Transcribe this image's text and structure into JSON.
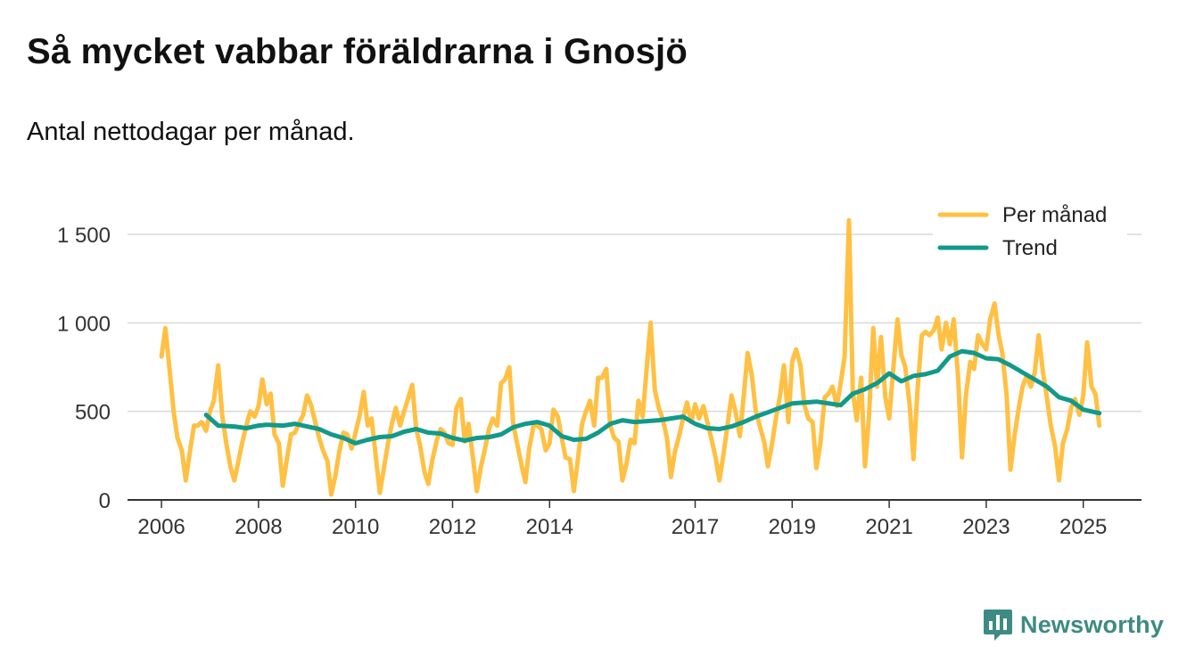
{
  "title": "Så mycket vabbar föräldrarna i Gnosjö",
  "subtitle": "Antal nettodagar per månad.",
  "brand": {
    "name": "Newsworthy",
    "icon": "newsworthy-logo-icon",
    "color": "#3d8b83"
  },
  "colors": {
    "per_month": "#ffc043",
    "trend": "#12998a",
    "grid": "#d9d9d9",
    "axis": "#333333"
  },
  "chart_data": {
    "type": "line",
    "title": "Så mycket vabbar föräldrarna i Gnosjö",
    "subtitle": "Antal nettodagar per månad.",
    "xlabel": "",
    "ylabel": "",
    "xlim": [
      2005.3,
      2026.2
    ],
    "ylim": [
      0,
      1500
    ],
    "y_ticks": [
      0,
      500,
      1000,
      1500
    ],
    "y_tick_labels": [
      "0",
      "500",
      "1 000",
      "1 500"
    ],
    "x_ticks": [
      2006,
      2008,
      2010,
      2012,
      2014,
      2017,
      2019,
      2021,
      2023,
      2025
    ],
    "x_tick_labels": [
      "2006",
      "2008",
      "2010",
      "2012",
      "2014",
      "2017",
      "2019",
      "2021",
      "2023",
      "2025"
    ],
    "grid": true,
    "legend_position": "top-right",
    "series": [
      {
        "name": "Per månad",
        "x": [
          2006.0,
          2006.08,
          2006.17,
          2006.25,
          2006.33,
          2006.42,
          2006.5,
          2006.58,
          2006.67,
          2006.75,
          2006.83,
          2006.92,
          2007.0,
          2007.08,
          2007.17,
          2007.25,
          2007.33,
          2007.42,
          2007.5,
          2007.58,
          2007.67,
          2007.75,
          2007.83,
          2007.92,
          2008.0,
          2008.08,
          2008.17,
          2008.25,
          2008.33,
          2008.42,
          2008.5,
          2008.58,
          2008.67,
          2008.75,
          2008.83,
          2008.92,
          2009.0,
          2009.08,
          2009.17,
          2009.25,
          2009.33,
          2009.42,
          2009.5,
          2009.58,
          2009.67,
          2009.75,
          2009.83,
          2009.92,
          2010.0,
          2010.08,
          2010.17,
          2010.25,
          2010.33,
          2010.42,
          2010.5,
          2010.58,
          2010.67,
          2010.75,
          2010.83,
          2010.92,
          2011.0,
          2011.08,
          2011.17,
          2011.25,
          2011.33,
          2011.42,
          2011.5,
          2011.58,
          2011.67,
          2011.75,
          2011.83,
          2011.92,
          2012.0,
          2012.08,
          2012.17,
          2012.25,
          2012.33,
          2012.42,
          2012.5,
          2012.58,
          2012.67,
          2012.75,
          2012.83,
          2012.92,
          2013.0,
          2013.08,
          2013.17,
          2013.25,
          2013.33,
          2013.42,
          2013.5,
          2013.58,
          2013.67,
          2013.75,
          2013.83,
          2013.92,
          2014.0,
          2014.08,
          2014.17,
          2014.25,
          2014.33,
          2014.42,
          2014.5,
          2014.58,
          2014.67,
          2014.75,
          2014.83,
          2014.92,
          2015.0,
          2015.08,
          2015.17,
          2015.25,
          2015.33,
          2015.42,
          2015.5,
          2015.58,
          2015.67,
          2015.75,
          2015.83,
          2015.92,
          2016.0,
          2016.08,
          2016.17,
          2016.25,
          2016.33,
          2016.42,
          2016.5,
          2016.58,
          2016.67,
          2016.75,
          2016.83,
          2016.92,
          2017.0,
          2017.08,
          2017.17,
          2017.25,
          2017.33,
          2017.42,
          2017.5,
          2017.58,
          2017.67,
          2017.75,
          2017.83,
          2017.92,
          2018.0,
          2018.08,
          2018.17,
          2018.25,
          2018.33,
          2018.42,
          2018.5,
          2018.58,
          2018.67,
          2018.75,
          2018.83,
          2018.92,
          2019.0,
          2019.08,
          2019.17,
          2019.25,
          2019.33,
          2019.42,
          2019.5,
          2019.58,
          2019.67,
          2019.75,
          2019.83,
          2019.92,
          2020.0,
          2020.08,
          2020.17,
          2020.25,
          2020.33,
          2020.42,
          2020.5,
          2020.58,
          2020.67,
          2020.75,
          2020.83,
          2020.92,
          2021.0,
          2021.08,
          2021.17,
          2021.25,
          2021.33,
          2021.42,
          2021.5,
          2021.58,
          2021.67,
          2021.75,
          2021.83,
          2021.92,
          2022.0,
          2022.08,
          2022.17,
          2022.25,
          2022.33,
          2022.42,
          2022.5,
          2022.58,
          2022.67,
          2022.75,
          2022.83,
          2022.92,
          2023.0,
          2023.08,
          2023.17,
          2023.25,
          2023.33,
          2023.42,
          2023.5,
          2023.58,
          2023.67,
          2023.75,
          2023.83,
          2023.92,
          2024.0,
          2024.08,
          2024.17,
          2024.25,
          2024.33,
          2024.42,
          2024.5,
          2024.58,
          2024.67,
          2024.75,
          2024.83,
          2024.92,
          2025.0,
          2025.08,
          2025.17,
          2025.25,
          2025.33
        ],
        "values": [
          810,
          970,
          730,
          500,
          350,
          280,
          110,
          260,
          420,
          420,
          440,
          390,
          500,
          560,
          760,
          480,
          330,
          190,
          110,
          210,
          330,
          420,
          500,
          470,
          530,
          680,
          540,
          600,
          370,
          320,
          80,
          220,
          370,
          380,
          430,
          480,
          590,
          540,
          440,
          350,
          280,
          220,
          30,
          130,
          280,
          380,
          370,
          290,
          380,
          470,
          610,
          420,
          460,
          240,
          40,
          170,
          320,
          430,
          520,
          420,
          500,
          570,
          650,
          400,
          310,
          160,
          90,
          220,
          330,
          400,
          380,
          320,
          310,
          520,
          570,
          330,
          430,
          240,
          50,
          180,
          290,
          400,
          460,
          420,
          660,
          680,
          750,
          430,
          320,
          200,
          100,
          290,
          420,
          420,
          400,
          280,
          320,
          510,
          470,
          350,
          240,
          230,
          50,
          220,
          430,
          500,
          560,
          420,
          690,
          690,
          740,
          420,
          350,
          330,
          110,
          200,
          340,
          320,
          560,
          470,
          740,
          1000,
          620,
          520,
          460,
          350,
          130,
          270,
          360,
          460,
          550,
          440,
          540,
          460,
          530,
          440,
          350,
          240,
          110,
          250,
          430,
          590,
          500,
          360,
          580,
          830,
          700,
          500,
          420,
          330,
          190,
          310,
          470,
          590,
          760,
          440,
          780,
          850,
          760,
          540,
          460,
          440,
          180,
          320,
          580,
          600,
          640,
          530,
          660,
          810,
          1580,
          610,
          450,
          690,
          190,
          460,
          970,
          640,
          920,
          580,
          460,
          730,
          1020,
          820,
          750,
          540,
          230,
          610,
          930,
          950,
          930,
          960,
          1030,
          850,
          1000,
          880,
          1020,
          690,
          240,
          590,
          780,
          740,
          930,
          880,
          850,
          1020,
          1110,
          940,
          830,
          590,
          170,
          360,
          520,
          640,
          700,
          640,
          720,
          930,
          720,
          580,
          420,
          300,
          110,
          320,
          400,
          520,
          570,
          480,
          590,
          890,
          640,
          600,
          420
        ]
      },
      {
        "name": "Trend",
        "x": [
          2006.92,
          2007.17,
          2007.5,
          2007.75,
          2008.0,
          2008.17,
          2008.5,
          2008.75,
          2009.0,
          2009.25,
          2009.5,
          2009.75,
          2010.0,
          2010.25,
          2010.5,
          2010.75,
          2011.0,
          2011.25,
          2011.5,
          2011.75,
          2012.0,
          2012.25,
          2012.5,
          2012.75,
          2013.0,
          2013.25,
          2013.5,
          2013.75,
          2014.0,
          2014.25,
          2014.5,
          2014.75,
          2015.0,
          2015.25,
          2015.5,
          2015.75,
          2016.0,
          2016.25,
          2016.5,
          2016.75,
          2017.0,
          2017.25,
          2017.5,
          2017.75,
          2018.0,
          2018.25,
          2018.5,
          2018.75,
          2019.0,
          2019.25,
          2019.5,
          2019.75,
          2020.0,
          2020.25,
          2020.5,
          2020.75,
          2021.0,
          2021.25,
          2021.5,
          2021.75,
          2022.0,
          2022.25,
          2022.5,
          2022.75,
          2023.0,
          2023.25,
          2023.5,
          2023.75,
          2024.0,
          2024.25,
          2024.5,
          2024.75,
          2025.0,
          2025.25,
          2025.33
        ],
        "values": [
          480,
          420,
          415,
          405,
          420,
          425,
          420,
          430,
          415,
          400,
          370,
          350,
          320,
          340,
          355,
          360,
          385,
          400,
          380,
          375,
          350,
          335,
          350,
          355,
          370,
          410,
          430,
          440,
          420,
          360,
          340,
          345,
          380,
          430,
          450,
          440,
          445,
          450,
          460,
          470,
          430,
          405,
          400,
          415,
          440,
          470,
          495,
          520,
          545,
          550,
          555,
          545,
          535,
          600,
          625,
          660,
          715,
          670,
          700,
          710,
          730,
          810,
          840,
          830,
          800,
          795,
          760,
          720,
          680,
          640,
          580,
          560,
          510,
          495,
          490
        ]
      }
    ]
  }
}
